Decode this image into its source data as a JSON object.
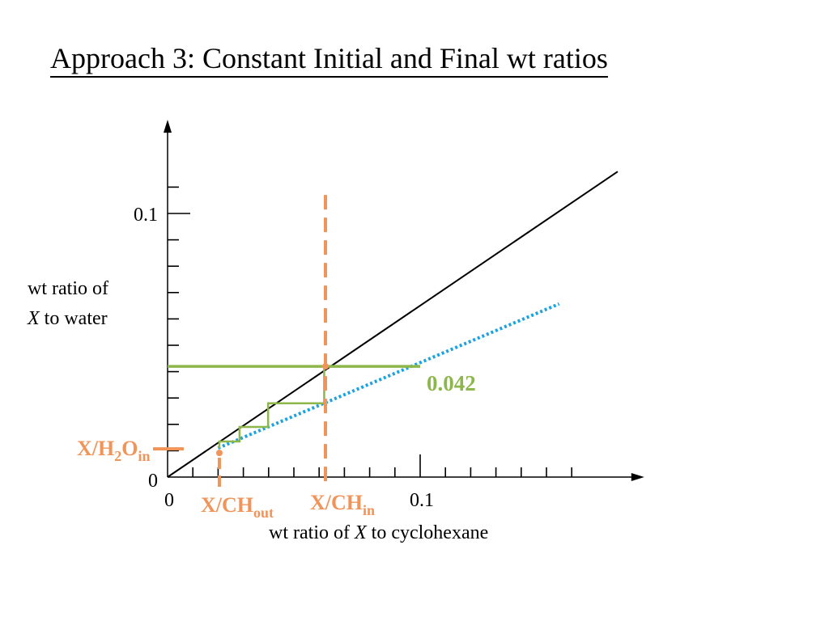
{
  "slide": {
    "title": "Approach 3: Constant Initial and Final wt ratios"
  },
  "chart_data": {
    "type": "line",
    "title": "",
    "xlabel": {
      "prefix": "wt ratio of ",
      "var": "X",
      "suffix": " to cyclohexane"
    },
    "ylabel": {
      "line1": "wt ratio of",
      "var": "X",
      "suffix": " to water"
    },
    "xlim": [
      0,
      0.165
    ],
    "ylim": [
      0,
      0.115
    ],
    "x_ticks": [
      {
        "value": 0,
        "label": "0"
      },
      {
        "value": 0.1,
        "label": "0.1"
      }
    ],
    "y_ticks": [
      {
        "value": 0,
        "label": "0"
      },
      {
        "value": 0.1,
        "label": "0.1"
      }
    ],
    "x_minor_step": 0.01,
    "y_minor_step": 0.01,
    "grid": false,
    "equilibrium_line": {
      "color": "#000000",
      "points": [
        [
          0,
          0
        ],
        [
          0.1782,
          0.1159
        ]
      ]
    },
    "operating_line": {
      "color": "#1aa3e0",
      "style": "dotted",
      "points": [
        [
          0.02,
          0.011
        ],
        [
          0.155,
          0.0657
        ]
      ]
    },
    "feed_level_line": {
      "color": "#8db64b",
      "y": 0.042,
      "x_range": [
        0,
        0.1
      ],
      "label": "0.042"
    },
    "stages": {
      "color": "#8db64b",
      "path": [
        [
          0.062,
          0.042
        ],
        [
          0.062,
          0.028
        ],
        [
          0.0398,
          0.028
        ],
        [
          0.0398,
          0.019
        ],
        [
          0.0285,
          0.019
        ],
        [
          0.0285,
          0.0135
        ],
        [
          0.0205,
          0.0135
        ],
        [
          0.0205,
          0.011
        ]
      ]
    },
    "guide_lines": {
      "color": "#f0945a",
      "x_ch_in": 0.0625,
      "x_ch_out": 0.0205,
      "x_h2o_in": 0.011
    },
    "annotations": {
      "x_ch_in": {
        "main": "X/CH",
        "sub": "in"
      },
      "x_ch_out": {
        "main": "X/CH",
        "sub": "out"
      },
      "x_h2o_in": {
        "main": "X/H",
        "sub2": "2",
        "main2": "O",
        "sub": "in"
      }
    }
  }
}
